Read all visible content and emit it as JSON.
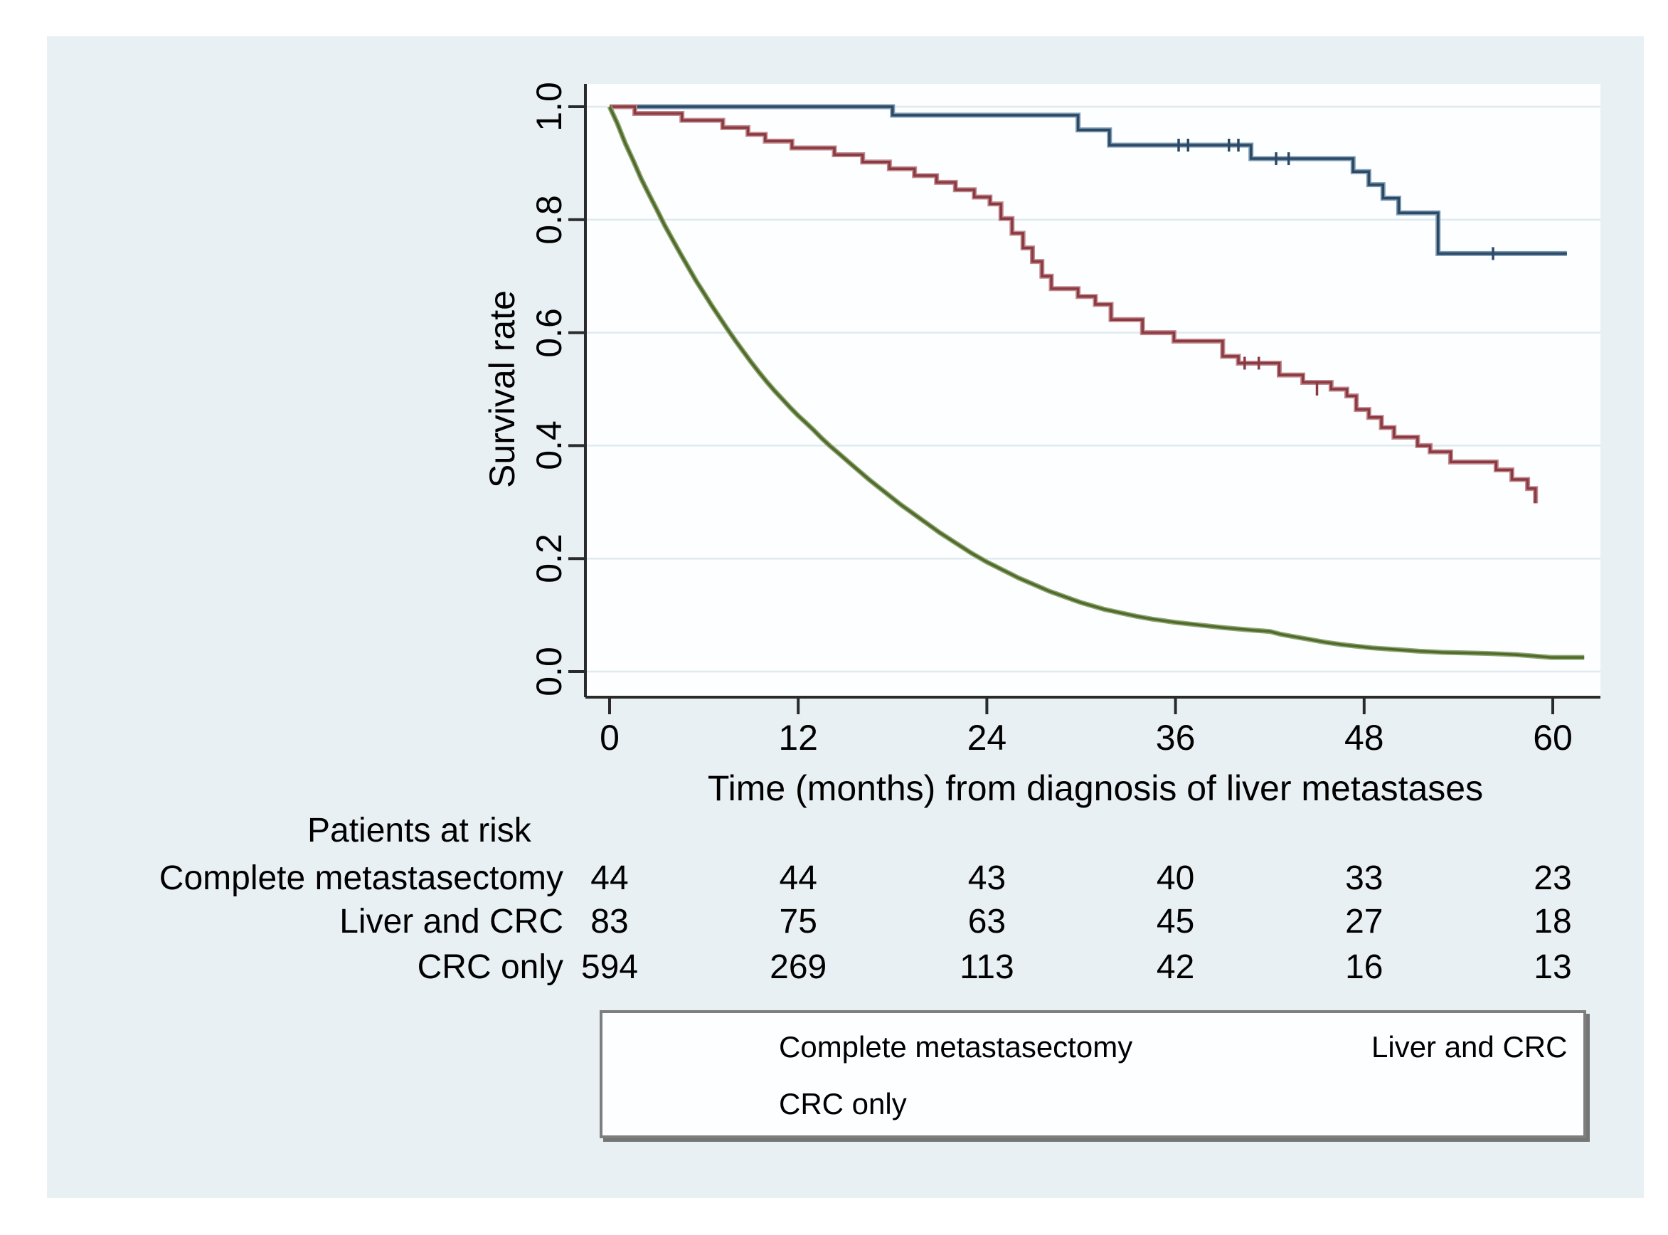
{
  "figure": {
    "background_color": "#ffffff",
    "panel_color": "#e9f0f3",
    "plot_background_color": "#fdfeff",
    "gridline_color": "#dfeaee",
    "axis_color": "#2a2a2a"
  },
  "chart_data": {
    "type": "line",
    "subtype": "kaplan-meier-step",
    "title": "",
    "xlabel": "Time (months) from diagnosis of liver metastases",
    "ylabel": "Survival rate",
    "xlim": [
      0,
      63
    ],
    "ylim": [
      0.0,
      1.0
    ],
    "grid": "horizontal",
    "xticks": [
      "0",
      "12",
      "24",
      "36",
      "48",
      "60"
    ],
    "xtick_values": [
      0,
      12,
      24,
      36,
      48,
      60
    ],
    "yticks": [
      "1.0",
      "0.8",
      "0.6",
      "0.4",
      "0.2",
      "0.0"
    ],
    "ytick_values": [
      1.0,
      0.8,
      0.6,
      0.4,
      0.2,
      0.0
    ],
    "series": [
      {
        "name": "Complete metastasectomy",
        "color": "#2c4a68",
        "halo_color": "#7d9ab0",
        "points": [
          [
            0,
            1.0
          ],
          [
            18,
            1.0
          ],
          [
            18,
            0.985
          ],
          [
            29.8,
            0.985
          ],
          [
            29.8,
            0.959
          ],
          [
            31.8,
            0.959
          ],
          [
            31.8,
            0.932
          ],
          [
            40.8,
            0.932
          ],
          [
            40.8,
            0.908
          ],
          [
            47.3,
            0.908
          ],
          [
            47.3,
            0.885
          ],
          [
            48.3,
            0.885
          ],
          [
            48.3,
            0.862
          ],
          [
            49.2,
            0.862
          ],
          [
            49.2,
            0.838
          ],
          [
            50.2,
            0.838
          ],
          [
            50.2,
            0.812
          ],
          [
            52.7,
            0.812
          ],
          [
            52.7,
            0.74
          ],
          [
            60.9,
            0.74
          ]
        ],
        "censor_ticks": [
          [
            36.2,
            0.932
          ],
          [
            36.8,
            0.932
          ],
          [
            39.4,
            0.932
          ],
          [
            40.0,
            0.932
          ],
          [
            42.4,
            0.908
          ],
          [
            43.2,
            0.908
          ],
          [
            56.2,
            0.74
          ]
        ]
      },
      {
        "name": "Liver and CRC",
        "color": "#8c3a42",
        "halo_color": "#c08a8e",
        "points": [
          [
            0,
            1.0
          ],
          [
            1.6,
            1.0
          ],
          [
            1.6,
            0.988
          ],
          [
            4.6,
            0.988
          ],
          [
            4.6,
            0.976
          ],
          [
            7.2,
            0.976
          ],
          [
            7.2,
            0.963
          ],
          [
            8.8,
            0.963
          ],
          [
            8.8,
            0.951
          ],
          [
            9.9,
            0.951
          ],
          [
            9.9,
            0.939
          ],
          [
            11.6,
            0.939
          ],
          [
            11.6,
            0.927
          ],
          [
            14.3,
            0.927
          ],
          [
            14.3,
            0.915
          ],
          [
            16.1,
            0.915
          ],
          [
            16.1,
            0.902
          ],
          [
            17.8,
            0.902
          ],
          [
            17.8,
            0.89
          ],
          [
            19.4,
            0.89
          ],
          [
            19.4,
            0.878
          ],
          [
            20.8,
            0.878
          ],
          [
            20.8,
            0.866
          ],
          [
            22.0,
            0.866
          ],
          [
            22.0,
            0.853
          ],
          [
            23.2,
            0.853
          ],
          [
            23.2,
            0.84
          ],
          [
            24.2,
            0.84
          ],
          [
            24.2,
            0.828
          ],
          [
            24.9,
            0.828
          ],
          [
            24.9,
            0.802
          ],
          [
            25.6,
            0.802
          ],
          [
            25.6,
            0.776
          ],
          [
            26.3,
            0.776
          ],
          [
            26.3,
            0.75
          ],
          [
            26.9,
            0.75
          ],
          [
            26.9,
            0.726
          ],
          [
            27.5,
            0.726
          ],
          [
            27.5,
            0.7
          ],
          [
            28.1,
            0.7
          ],
          [
            28.1,
            0.678
          ],
          [
            29.8,
            0.678
          ],
          [
            29.8,
            0.664
          ],
          [
            30.9,
            0.664
          ],
          [
            30.9,
            0.65
          ],
          [
            31.9,
            0.65
          ],
          [
            31.9,
            0.623
          ],
          [
            33.9,
            0.623
          ],
          [
            33.9,
            0.6
          ],
          [
            35.9,
            0.6
          ],
          [
            35.9,
            0.585
          ],
          [
            39.0,
            0.585
          ],
          [
            39.0,
            0.558
          ],
          [
            40.0,
            0.558
          ],
          [
            40.0,
            0.546
          ],
          [
            42.6,
            0.546
          ],
          [
            42.6,
            0.525
          ],
          [
            44.1,
            0.525
          ],
          [
            44.1,
            0.512
          ],
          [
            45.9,
            0.512
          ],
          [
            45.9,
            0.5
          ],
          [
            46.9,
            0.5
          ],
          [
            46.9,
            0.488
          ],
          [
            47.5,
            0.488
          ],
          [
            47.5,
            0.464
          ],
          [
            48.3,
            0.464
          ],
          [
            48.3,
            0.45
          ],
          [
            49.1,
            0.45
          ],
          [
            49.1,
            0.432
          ],
          [
            49.9,
            0.432
          ],
          [
            49.9,
            0.415
          ],
          [
            51.4,
            0.415
          ],
          [
            51.4,
            0.4
          ],
          [
            52.2,
            0.4
          ],
          [
            52.2,
            0.389
          ],
          [
            53.5,
            0.389
          ],
          [
            53.5,
            0.371
          ],
          [
            56.4,
            0.371
          ],
          [
            56.4,
            0.357
          ],
          [
            57.4,
            0.357
          ],
          [
            57.4,
            0.34
          ],
          [
            58.4,
            0.34
          ],
          [
            58.4,
            0.324
          ],
          [
            58.9,
            0.324
          ],
          [
            58.9,
            0.298
          ]
        ],
        "censor_ticks": [
          [
            40.4,
            0.546
          ],
          [
            41.3,
            0.546
          ],
          [
            45.0,
            0.5
          ]
        ]
      },
      {
        "name": "CRC only",
        "color": "#4f6b2a",
        "halo_color": "#8fa371",
        "points": [
          [
            0,
            1.0
          ],
          [
            0.5,
            0.97
          ],
          [
            1,
            0.935
          ],
          [
            1.5,
            0.905
          ],
          [
            2,
            0.873
          ],
          [
            2.5,
            0.845
          ],
          [
            3,
            0.818
          ],
          [
            3.5,
            0.79
          ],
          [
            4,
            0.765
          ],
          [
            4.5,
            0.74
          ],
          [
            5,
            0.716
          ],
          [
            5.5,
            0.692
          ],
          [
            6,
            0.67
          ],
          [
            6.5,
            0.648
          ],
          [
            7,
            0.627
          ],
          [
            7.5,
            0.606
          ],
          [
            8,
            0.586
          ],
          [
            8.5,
            0.567
          ],
          [
            9,
            0.548
          ],
          [
            9.5,
            0.53
          ],
          [
            10,
            0.513
          ],
          [
            10.5,
            0.497
          ],
          [
            11,
            0.482
          ],
          [
            11.5,
            0.467
          ],
          [
            12,
            0.453
          ],
          [
            12.5,
            0.44
          ],
          [
            13,
            0.427
          ],
          [
            13.5,
            0.413
          ],
          [
            14,
            0.4
          ],
          [
            14.5,
            0.388
          ],
          [
            15,
            0.376
          ],
          [
            15.5,
            0.364
          ],
          [
            16,
            0.352
          ],
          [
            16.5,
            0.34
          ],
          [
            17,
            0.329
          ],
          [
            17.5,
            0.318
          ],
          [
            18,
            0.307
          ],
          [
            18.5,
            0.296
          ],
          [
            19,
            0.286
          ],
          [
            19.5,
            0.276
          ],
          [
            20,
            0.266
          ],
          [
            20.5,
            0.256
          ],
          [
            21,
            0.246
          ],
          [
            21.5,
            0.237
          ],
          [
            22,
            0.228
          ],
          [
            22.5,
            0.219
          ],
          [
            23,
            0.21
          ],
          [
            23.5,
            0.202
          ],
          [
            24,
            0.194
          ],
          [
            24.5,
            0.187
          ],
          [
            25,
            0.18
          ],
          [
            25.5,
            0.173
          ],
          [
            26,
            0.166
          ],
          [
            26.5,
            0.16
          ],
          [
            27,
            0.154
          ],
          [
            27.5,
            0.148
          ],
          [
            28,
            0.142
          ],
          [
            28.5,
            0.137
          ],
          [
            29,
            0.132
          ],
          [
            29.5,
            0.127
          ],
          [
            30,
            0.122
          ],
          [
            30.5,
            0.118
          ],
          [
            31,
            0.114
          ],
          [
            31.5,
            0.11
          ],
          [
            32,
            0.107
          ],
          [
            32.5,
            0.104
          ],
          [
            33,
            0.101
          ],
          [
            33.5,
            0.098
          ],
          [
            34,
            0.0955
          ],
          [
            34.5,
            0.093
          ],
          [
            35,
            0.091
          ],
          [
            35.5,
            0.089
          ],
          [
            36,
            0.087
          ],
          [
            37,
            0.084
          ],
          [
            38,
            0.081
          ],
          [
            39,
            0.078
          ],
          [
            40,
            0.0755
          ],
          [
            41,
            0.073
          ],
          [
            42,
            0.071
          ],
          [
            42.7,
            0.066
          ],
          [
            43.5,
            0.062
          ],
          [
            44.5,
            0.057
          ],
          [
            45.5,
            0.052
          ],
          [
            46.5,
            0.048
          ],
          [
            47.5,
            0.045
          ],
          [
            48.5,
            0.042
          ],
          [
            49.5,
            0.04
          ],
          [
            50.5,
            0.038
          ],
          [
            51.5,
            0.036
          ],
          [
            53,
            0.034
          ],
          [
            54.5,
            0.033
          ],
          [
            56,
            0.032
          ],
          [
            57.7,
            0.03
          ],
          [
            59.9,
            0.025
          ],
          [
            62,
            0.025
          ]
        ],
        "censor_ticks": []
      }
    ]
  },
  "risk_table": {
    "header": "Patients at risk",
    "times": [
      0,
      12,
      24,
      36,
      48,
      60
    ],
    "rows": [
      {
        "label": "Complete metastasectomy",
        "values": [
          "44",
          "44",
          "43",
          "40",
          "33",
          "23"
        ]
      },
      {
        "label": "Liver and CRC",
        "values": [
          "83",
          "75",
          "63",
          "45",
          "27",
          "18"
        ]
      },
      {
        "label": "CRC only",
        "values": [
          "594",
          "269",
          "113",
          "42",
          "16",
          "13"
        ]
      }
    ]
  },
  "legend": {
    "entries": [
      {
        "label": "Complete metastasectomy",
        "color": "#2c4a68",
        "halo_color": "#7d9ab0"
      },
      {
        "label": "Liver and CRC",
        "color": "#8c3a42",
        "halo_color": "#c08a8e"
      },
      {
        "label": "CRC only",
        "color": "#4f6b2a",
        "halo_color": "#8fa371"
      }
    ]
  }
}
